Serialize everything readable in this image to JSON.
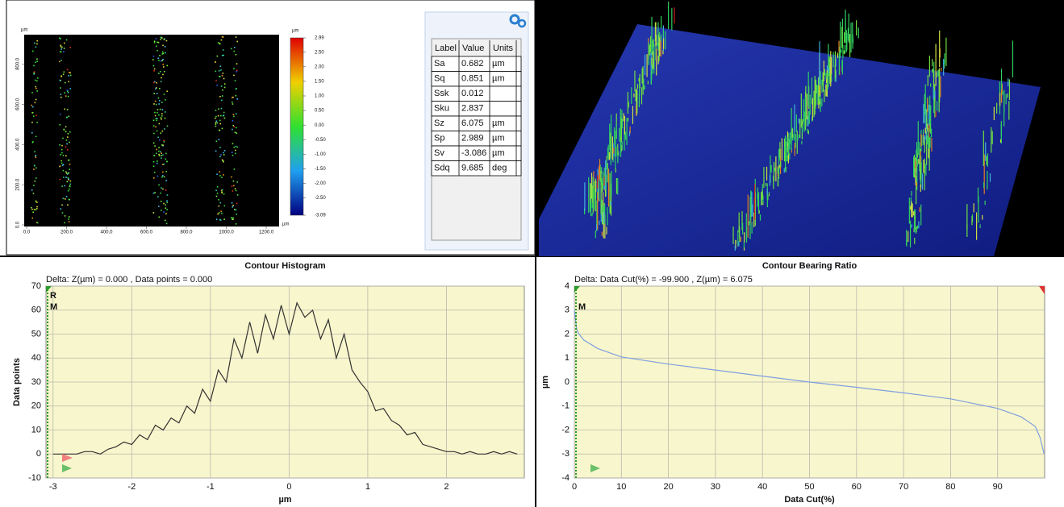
{
  "height_map": {
    "unit_top": "µm",
    "unit_right": "µm",
    "colorbar_unit": "µm",
    "xticks": [
      {
        "value": 0,
        "label": "0.0"
      },
      {
        "value": 200,
        "label": "200.0"
      },
      {
        "value": 400,
        "label": "400.0"
      },
      {
        "value": 600,
        "label": "600.0"
      },
      {
        "value": 800,
        "label": "800.0"
      },
      {
        "value": 1000,
        "label": "1000.0"
      },
      {
        "value": 1200,
        "label": "1200.0"
      }
    ],
    "xlim": [
      0,
      1200
    ],
    "yticks": [
      {
        "value": 0,
        "label": "0.0"
      },
      {
        "value": 200,
        "label": "200.0"
      },
      {
        "value": 400,
        "label": "400.0"
      },
      {
        "value": 600,
        "label": "600.0"
      },
      {
        "value": 800,
        "label": "800.0"
      }
    ],
    "ylim": [
      0,
      945.9
    ],
    "colorbar_ticks": [
      {
        "value": 2.99,
        "label": "2.99"
      },
      {
        "value": 2.5,
        "label": "2.50"
      },
      {
        "value": 2,
        "label": "2.00"
      },
      {
        "value": 1.5,
        "label": "1.50"
      },
      {
        "value": 1,
        "label": "1.00"
      },
      {
        "value": 0.5,
        "label": "0.50"
      },
      {
        "value": 0,
        "label": "0.00"
      },
      {
        "value": -0.5,
        "label": "-0.50"
      },
      {
        "value": -1,
        "label": "-1.00"
      },
      {
        "value": -1.5,
        "label": "-1.50"
      },
      {
        "value": -2,
        "label": "-2.00"
      },
      {
        "value": -2.5,
        "label": "-2.50"
      },
      {
        "value": -3.09,
        "label": "-3.09"
      }
    ],
    "colorbar_lim": [
      -3.09,
      2.99
    ]
  },
  "parameters": {
    "header": [
      "Label",
      "Value",
      "Units"
    ],
    "rows": [
      [
        "Sa",
        "0.682",
        "µm"
      ],
      [
        "Sq",
        "0.851",
        "µm"
      ],
      [
        "Ssk",
        "0.012",
        ""
      ],
      [
        "Sku",
        "2.837",
        ""
      ],
      [
        "Sz",
        "6.075",
        "µm"
      ],
      [
        "Sp",
        "2.989",
        "µm"
      ],
      [
        "Sv",
        "-3.086",
        "µm"
      ],
      [
        "Sdq",
        "9.685",
        "deg"
      ]
    ]
  },
  "chart_data": [
    {
      "type": "line",
      "title": "Contour Histogram",
      "annotation": "Delta:  Z(µm) = 0.000 ,  Data points = 0.000",
      "x_label": "µm",
      "y_label": "Data points",
      "cursor_labels": [
        "R",
        "M"
      ],
      "color": "#333333",
      "grid": true,
      "x": [
        -3.0,
        -2.9,
        -2.8,
        -2.7,
        -2.6,
        -2.5,
        -2.4,
        -2.3,
        -2.2,
        -2.1,
        -2.0,
        -1.9,
        -1.8,
        -1.7,
        -1.6,
        -1.5,
        -1.4,
        -1.3,
        -1.2,
        -1.1,
        -1.0,
        -0.9,
        -0.8,
        -0.7,
        -0.6,
        -0.5,
        -0.4,
        -0.3,
        -0.2,
        -0.1,
        0.0,
        0.1,
        0.2,
        0.3,
        0.4,
        0.5,
        0.6,
        0.7,
        0.8,
        0.9,
        1.0,
        1.1,
        1.2,
        1.3,
        1.4,
        1.5,
        1.6,
        1.7,
        1.8,
        1.9,
        2.0,
        2.1,
        2.2,
        2.3,
        2.4,
        2.5,
        2.6,
        2.7,
        2.8,
        2.9
      ],
      "values": [
        0,
        0,
        0,
        0,
        1,
        1,
        0,
        2,
        3,
        5,
        4,
        8,
        6,
        12,
        10,
        15,
        13,
        20,
        17,
        27,
        22,
        35,
        30,
        48,
        40,
        55,
        42,
        58,
        48,
        62,
        50,
        63,
        57,
        60,
        48,
        56,
        40,
        50,
        35,
        30,
        26,
        18,
        19,
        14,
        12,
        8,
        9,
        4,
        3,
        2,
        1,
        1,
        0,
        1,
        0,
        0,
        1,
        0,
        1,
        0
      ],
      "xlim": [
        -3.09,
        2.99
      ],
      "xticks": [
        -3,
        -2,
        -1,
        0,
        1,
        2
      ],
      "ylim": [
        -10,
        70
      ],
      "yticks": [
        -10,
        0,
        10,
        20,
        30,
        40,
        50,
        60,
        70
      ]
    },
    {
      "type": "line",
      "title": "Contour Bearing Ratio",
      "annotation": "Delta:  Data Cut(%) = -99.900 ,  Z(µm) = 6.075",
      "x_label": "Data Cut(%)",
      "y_label": "µm",
      "cursor_labels": [
        "M"
      ],
      "color": "#7f9fe0",
      "grid": true,
      "x": [
        0,
        0.5,
        1,
        2,
        5,
        10,
        20,
        30,
        40,
        50,
        60,
        70,
        80,
        90,
        95,
        98,
        99,
        99.9
      ],
      "values": [
        3,
        2.2,
        2,
        1.75,
        1.4,
        1.05,
        0.75,
        0.5,
        0.25,
        0,
        -0.22,
        -0.45,
        -0.7,
        -1.1,
        -1.45,
        -1.85,
        -2.3,
        -3
      ],
      "xlim": [
        0,
        100
      ],
      "xticks": [
        0,
        10,
        20,
        30,
        40,
        50,
        60,
        70,
        80,
        90
      ],
      "ylim": [
        -4,
        4
      ],
      "yticks": [
        -4,
        -3,
        -2,
        -1,
        0,
        1,
        2,
        3,
        4
      ]
    }
  ]
}
